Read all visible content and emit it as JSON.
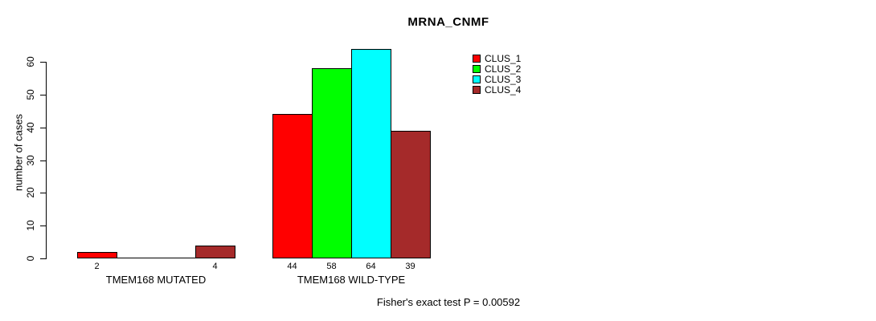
{
  "chart_data": {
    "type": "bar",
    "title": "MRNA_CNMF",
    "xlabel": "",
    "ylabel": "number of cases",
    "categories": [
      "TMEM168 MUTATED",
      "TMEM168 WILD-TYPE"
    ],
    "series": [
      {
        "name": "CLUS_1",
        "color": "#FF0000",
        "values": [
          2,
          44
        ]
      },
      {
        "name": "CLUS_2",
        "color": "#00FF00",
        "values": [
          0,
          58
        ]
      },
      {
        "name": "CLUS_3",
        "color": "#00FFFF",
        "values": [
          0,
          64
        ]
      },
      {
        "name": "CLUS_4",
        "color": "#A52A2A",
        "values": [
          4,
          39
        ]
      }
    ],
    "bar_value_labels_shown": [
      "2",
      "4",
      "44",
      "58",
      "64",
      "39"
    ],
    "zero_bars_drawn_as_flat_lines": true,
    "yticks": [
      0,
      10,
      20,
      30,
      40,
      50,
      60
    ],
    "ylim": [
      0,
      65
    ],
    "grid": false,
    "legend_position": "top-right",
    "bar_border_color": "#000000",
    "annotation": "Fisher's exact test P = 0.00592"
  }
}
